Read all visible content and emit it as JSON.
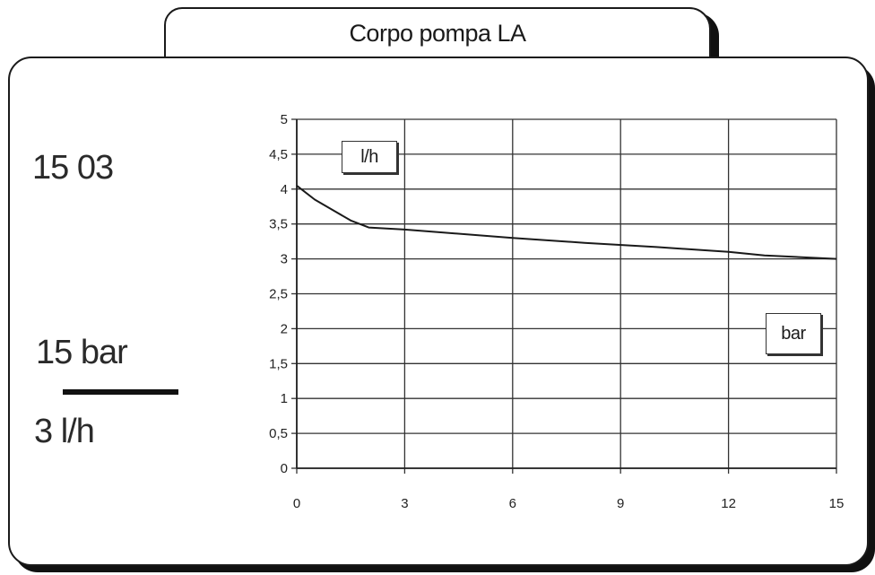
{
  "panel": {
    "title": "Corpo pompa LA",
    "model_code": "15 03",
    "rating_pressure": "15 bar",
    "rating_flow": "3 l/h"
  },
  "chart_data": {
    "type": "line",
    "title": "",
    "ylabel": "l/h",
    "xlabel": "bar",
    "xlim": [
      0,
      15
    ],
    "ylim": [
      0,
      5
    ],
    "x_ticks": [
      0,
      3,
      6,
      9,
      12,
      15
    ],
    "x_tick_labels": [
      "0",
      "3",
      "6",
      "9",
      "12",
      "15"
    ],
    "y_ticks": [
      0,
      0.5,
      1,
      1.5,
      2,
      2.5,
      3,
      3.5,
      4,
      4.5,
      5
    ],
    "y_tick_labels": [
      "0",
      "0,5",
      "1",
      "1,5",
      "2",
      "2,5",
      "3",
      "3,5",
      "4",
      "4,5",
      "5"
    ],
    "grid": true,
    "series": [
      {
        "x": [
          0,
          0.5,
          1,
          1.5,
          2,
          3,
          4,
          6,
          8,
          10,
          12,
          13,
          15
        ],
        "y": [
          4.05,
          3.85,
          3.7,
          3.55,
          3.45,
          3.42,
          3.38,
          3.3,
          3.23,
          3.17,
          3.1,
          3.05,
          3.0
        ]
      }
    ]
  }
}
